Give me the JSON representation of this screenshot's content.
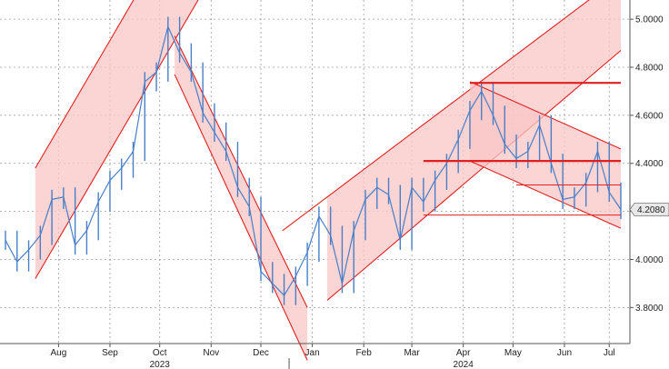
{
  "chart_data": {
    "type": "line",
    "title": "",
    "xlabel": "",
    "ylabel": "",
    "x_range": [
      "2023-07-14",
      "2024-07-19"
    ],
    "ylim": [
      3.65,
      5.08
    ],
    "y_ticks": [
      3.8,
      4.0,
      4.2,
      4.4,
      4.6,
      4.8,
      5.0
    ],
    "y_tick_labels": [
      "3.8000",
      "4.0000",
      "4.2000",
      "4.4000",
      "4.6000",
      "4.8000",
      "5.0000"
    ],
    "month_labels": [
      {
        "date": "2023-08-15",
        "label": "Aug"
      },
      {
        "date": "2023-09-15",
        "label": "Sep"
      },
      {
        "date": "2023-10-15",
        "label": "Oct"
      },
      {
        "date": "2023-11-15",
        "label": "Nov"
      },
      {
        "date": "2023-12-15",
        "label": "Dec"
      },
      {
        "date": "2024-01-15",
        "label": "Jan"
      },
      {
        "date": "2024-02-15",
        "label": "Feb"
      },
      {
        "date": "2024-03-15",
        "label": "Mar"
      },
      {
        "date": "2024-04-15",
        "label": "Apr"
      },
      {
        "date": "2024-05-15",
        "label": "May"
      },
      {
        "date": "2024-06-15",
        "label": "Jun"
      },
      {
        "date": "2024-07-12",
        "label": "Jul"
      }
    ],
    "year_labels": [
      {
        "date": "2023-10-15",
        "label": "2023"
      },
      {
        "date": "2024-04-15",
        "label": "2024"
      }
    ],
    "last_value": 4.208,
    "last_value_label": "4.2080",
    "series": [
      {
        "color": "#4a7fc8",
        "points": [
          [
            "2023-07-14",
            4.08
          ],
          [
            "2023-07-21",
            3.99
          ],
          [
            "2023-07-28",
            4.04
          ],
          [
            "2023-08-04",
            4.1
          ],
          [
            "2023-08-11",
            4.25
          ],
          [
            "2023-08-18",
            4.26
          ],
          [
            "2023-08-25",
            4.06
          ],
          [
            "2023-09-01",
            4.12
          ],
          [
            "2023-09-08",
            4.24
          ],
          [
            "2023-09-15",
            4.33
          ],
          [
            "2023-09-22",
            4.38
          ],
          [
            "2023-09-29",
            4.45
          ],
          [
            "2023-10-06",
            4.74
          ],
          [
            "2023-10-13",
            4.78
          ],
          [
            "2023-10-20",
            4.97
          ],
          [
            "2023-10-27",
            4.86
          ],
          [
            "2023-11-03",
            4.78
          ],
          [
            "2023-11-10",
            4.61
          ],
          [
            "2023-11-17",
            4.53
          ],
          [
            "2023-11-24",
            4.45
          ],
          [
            "2023-12-01",
            4.3
          ],
          [
            "2023-12-08",
            4.22
          ],
          [
            "2023-12-15",
            3.95
          ],
          [
            "2023-12-22",
            3.9
          ],
          [
            "2023-12-29",
            3.85
          ],
          [
            "2024-01-05",
            3.93
          ],
          [
            "2024-01-12",
            4.03
          ],
          [
            "2024-01-19",
            4.18
          ],
          [
            "2024-01-26",
            4.1
          ],
          [
            "2024-02-02",
            3.9
          ],
          [
            "2024-02-09",
            4.12
          ],
          [
            "2024-02-16",
            4.25
          ],
          [
            "2024-02-23",
            4.3
          ],
          [
            "2024-03-01",
            4.27
          ],
          [
            "2024-03-08",
            4.08
          ],
          [
            "2024-03-15",
            4.3
          ],
          [
            "2024-03-22",
            4.24
          ],
          [
            "2024-03-29",
            4.33
          ],
          [
            "2024-04-05",
            4.4
          ],
          [
            "2024-04-12",
            4.5
          ],
          [
            "2024-04-19",
            4.62
          ],
          [
            "2024-04-26",
            4.7
          ],
          [
            "2024-05-03",
            4.6
          ],
          [
            "2024-05-10",
            4.48
          ],
          [
            "2024-05-17",
            4.42
          ],
          [
            "2024-05-24",
            4.45
          ],
          [
            "2024-05-31",
            4.56
          ],
          [
            "2024-06-07",
            4.4
          ],
          [
            "2024-06-14",
            4.25
          ],
          [
            "2024-06-21",
            4.26
          ],
          [
            "2024-06-28",
            4.32
          ],
          [
            "2024-07-05",
            4.45
          ],
          [
            "2024-07-12",
            4.28
          ],
          [
            "2024-07-19",
            4.208
          ]
        ]
      }
    ],
    "channels": [
      {
        "upper": [
          [
            "2023-08-01",
            4.38
          ],
          [
            "2023-11-08",
            5.55
          ]
        ],
        "lower": [
          [
            "2023-08-01",
            3.92
          ],
          [
            "2023-11-08",
            5.09
          ]
        ]
      },
      {
        "upper": [
          [
            "2023-10-24",
            4.77
          ],
          [
            "2024-01-12",
            3.58
          ]
        ],
        "lower": [
          [
            "2023-10-24",
            4.93
          ],
          [
            "2024-01-12",
            3.8
          ]
        ]
      },
      {
        "upper": [
          [
            "2023-12-28",
            4.12
          ],
          [
            "2024-07-19",
            5.18
          ]
        ],
        "lower": [
          [
            "2024-01-24",
            3.83
          ],
          [
            "2024-07-19",
            4.87
          ]
        ]
      },
      {
        "upper": [
          [
            "2024-04-19",
            4.74
          ],
          [
            "2024-07-19",
            4.46
          ]
        ],
        "lower": [
          [
            "2024-04-19",
            4.41
          ],
          [
            "2024-07-19",
            4.13
          ]
        ]
      }
    ],
    "horizontal_levels": [
      {
        "value": 4.735,
        "from": "2024-04-19",
        "to": "2024-07-19",
        "weight": "bold"
      },
      {
        "value": 4.41,
        "from": "2024-03-22",
        "to": "2024-07-19",
        "weight": "bold"
      },
      {
        "value": 4.31,
        "from": "2024-05-17",
        "to": "2024-07-19",
        "weight": "thin"
      },
      {
        "value": 4.185,
        "from": "2024-03-22",
        "to": "2024-07-19",
        "weight": "thin"
      }
    ],
    "colors": {
      "line": "#4a7fc8",
      "trend": "#e02020",
      "channel_fill": "#f9c6c6",
      "grid": "#9a9a9a"
    },
    "grid": true,
    "legend": "none"
  }
}
